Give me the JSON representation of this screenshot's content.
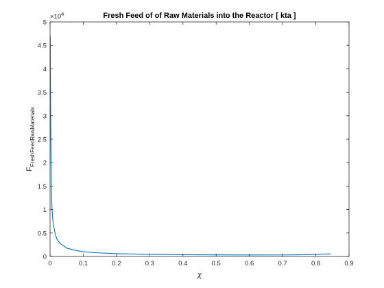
{
  "chart_data": {
    "type": "line",
    "title": "Fresh Feed of of Raw Materials into the Reactor [ kta ]",
    "xlabel": "χ",
    "ylabel_main": "F",
    "ylabel_subscript": "FreshFeedRawMaterials",
    "exponent_base": "×10",
    "exponent_power": "4",
    "xlim": [
      0,
      0.9
    ],
    "ylim": [
      0,
      50000
    ],
    "xticks": [
      0,
      0.1,
      0.2,
      0.3,
      0.4,
      0.5,
      0.6,
      0.7,
      0.8,
      0.9
    ],
    "xtick_labels": [
      "0",
      "0.1",
      "0.2",
      "0.3",
      "0.4",
      "0.5",
      "0.6",
      "0.7",
      "0.8",
      "0.9"
    ],
    "yticks": [
      0,
      5000,
      10000,
      15000,
      20000,
      25000,
      30000,
      35000,
      40000,
      45000,
      50000
    ],
    "ytick_labels": [
      "0",
      "0.5",
      "1",
      "1.5",
      "2",
      "2.5",
      "3",
      "3.5",
      "4",
      "4.5",
      "5"
    ],
    "grid": false,
    "line_color": "#0072bd",
    "series": [
      {
        "x": [
          0.0005,
          0.001,
          0.002,
          0.003,
          0.004,
          0.006,
          0.008,
          0.01,
          0.015,
          0.02,
          0.03,
          0.05,
          0.07,
          0.1,
          0.15,
          0.2,
          0.3,
          0.4,
          0.5,
          0.6,
          0.7,
          0.75,
          0.8,
          0.845
        ],
        "y": [
          47000,
          40000,
          28000,
          20000,
          14500,
          10000,
          8000,
          6800,
          5000,
          3800,
          2800,
          1800,
          1400,
          1000,
          750,
          600,
          450,
          380,
          340,
          320,
          330,
          360,
          430,
          560
        ]
      }
    ]
  }
}
